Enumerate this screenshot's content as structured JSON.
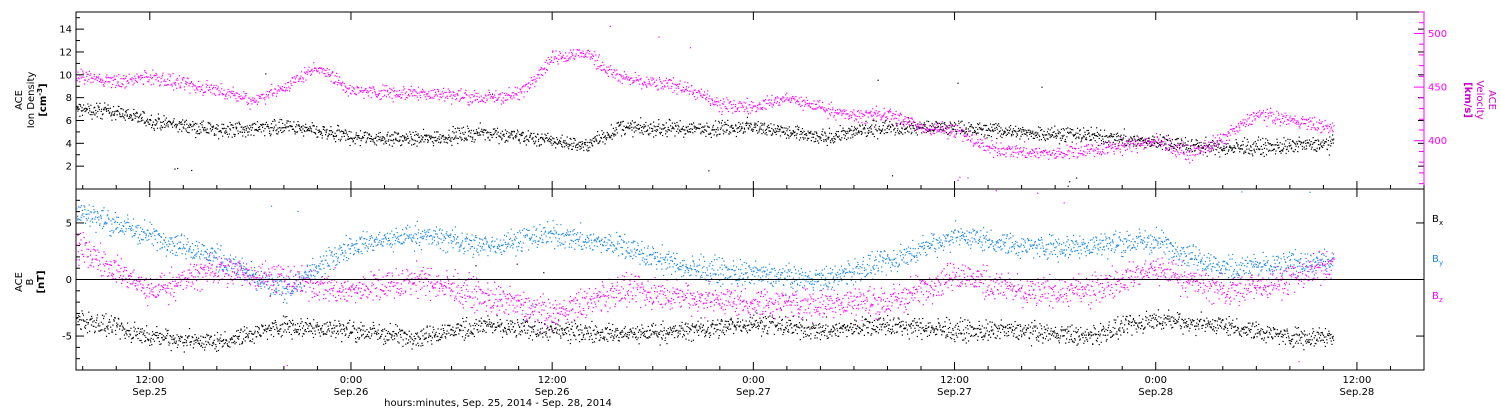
{
  "chart_data": {
    "type": "scatter",
    "xlabel": "hours:minutes, Sep. 25, 2014 - Sep. 28, 2014",
    "x_ticks": [
      {
        "hour": 12,
        "time": "12:00",
        "date": "Sep.25"
      },
      {
        "hour": 24,
        "time": "0:00",
        "date": "Sep.26"
      },
      {
        "hour": 36,
        "time": "12:00",
        "date": "Sep.26"
      },
      {
        "hour": 48,
        "time": "0:00",
        "date": "Sep.27"
      },
      {
        "hour": 60,
        "time": "12:00",
        "date": "Sep.27"
      },
      {
        "hour": 72,
        "time": "0:00",
        "date": "Sep.28"
      },
      {
        "hour": 84,
        "time": "12:00",
        "date": "Sep.28"
      }
    ],
    "xlim": [
      7.6,
      88
    ],
    "data_end_hour": 82.6,
    "panels": [
      {
        "id": "density-velocity",
        "ylabel_lines": [
          "ACE",
          "Ion Density",
          "[cm^-3]"
        ],
        "ylim": [
          0,
          15.5
        ],
        "yticks": [
          2,
          4,
          6,
          8,
          10,
          12,
          14
        ],
        "right_axis": {
          "ylabel_lines": [
            "ACE",
            "Velocity",
            "[km/s]"
          ],
          "ylim": [
            355,
            520
          ],
          "yticks": [
            400,
            450,
            500
          ],
          "color": "#ff00ff"
        },
        "series": [
          {
            "axis": "left",
            "color": "#000000",
            "trend": [
              [
                7.6,
                7.0
              ],
              [
                10,
                6.8
              ],
              [
                12,
                6.0
              ],
              [
                16,
                5.2
              ],
              [
                20,
                5.5
              ],
              [
                24,
                4.6
              ],
              [
                28,
                4.4
              ],
              [
                32,
                5.0
              ],
              [
                36,
                4.3
              ],
              [
                38,
                3.8
              ],
              [
                40,
                5.4
              ],
              [
                44,
                5.3
              ],
              [
                48,
                5.5
              ],
              [
                52,
                4.5
              ],
              [
                56,
                5.5
              ],
              [
                60,
                5.4
              ],
              [
                64,
                5.0
              ],
              [
                68,
                4.7
              ],
              [
                72,
                4.1
              ],
              [
                76,
                3.6
              ],
              [
                80,
                3.8
              ],
              [
                82.6,
                4.0
              ]
            ]
          },
          {
            "axis": "right",
            "color": "#ff00ff",
            "trend": [
              [
                7.6,
                462
              ],
              [
                10,
                455
              ],
              [
                12,
                460
              ],
              [
                14,
                452
              ],
              [
                16,
                448
              ],
              [
                18,
                438
              ],
              [
                20,
                450
              ],
              [
                22,
                470
              ],
              [
                24,
                447
              ],
              [
                28,
                445
              ],
              [
                32,
                440
              ],
              [
                34,
                444
              ],
              [
                36,
                478
              ],
              [
                38,
                482
              ],
              [
                40,
                459
              ],
              [
                44,
                450
              ],
              [
                46,
                433
              ],
              [
                48,
                432
              ],
              [
                50,
                440
              ],
              [
                54,
                423
              ],
              [
                56,
                426
              ],
              [
                58,
                413
              ],
              [
                60,
                410
              ],
              [
                62,
                393
              ],
              [
                66,
                388
              ],
              [
                70,
                395
              ],
              [
                72,
                400
              ],
              [
                74,
                388
              ],
              [
                76,
                402
              ],
              [
                78,
                425
              ],
              [
                80,
                420
              ],
              [
                82.6,
                412
              ]
            ]
          }
        ]
      },
      {
        "id": "magnetic-field",
        "ylabel_lines": [
          "ACE",
          "B",
          "[nT]"
        ],
        "ylim": [
          -8,
          8
        ],
        "yticks": [
          -5,
          0,
          5
        ],
        "zero_line": true,
        "legend": [
          {
            "label": "B",
            "sub": "x",
            "color": "#000000"
          },
          {
            "label": "B",
            "sub": "y",
            "color": "#1a88e6"
          },
          {
            "label": "B",
            "sub": "z",
            "color": "#ff00ff"
          }
        ],
        "series": [
          {
            "color": "#000000",
            "trend": [
              [
                7.6,
                -3.5
              ],
              [
                12,
                -5.0
              ],
              [
                16,
                -5.5
              ],
              [
                20,
                -4.0
              ],
              [
                24,
                -4.5
              ],
              [
                28,
                -5.0
              ],
              [
                32,
                -4.0
              ],
              [
                36,
                -4.5
              ],
              [
                40,
                -4.8
              ],
              [
                44,
                -4.5
              ],
              [
                48,
                -3.8
              ],
              [
                52,
                -4.5
              ],
              [
                56,
                -4.0
              ],
              [
                60,
                -4.5
              ],
              [
                64,
                -4.5
              ],
              [
                68,
                -5.0
              ],
              [
                72,
                -3.5
              ],
              [
                76,
                -4.0
              ],
              [
                80,
                -5.0
              ],
              [
                82.6,
                -5.0
              ]
            ]
          },
          {
            "color": "#1a88e6",
            "trend": [
              [
                7.6,
                6.0
              ],
              [
                12,
                4.0
              ],
              [
                16,
                2.0
              ],
              [
                20,
                -1.0
              ],
              [
                24,
                3.0
              ],
              [
                28,
                4.0
              ],
              [
                32,
                3.0
              ],
              [
                36,
                4.0
              ],
              [
                40,
                3.0
              ],
              [
                44,
                1.0
              ],
              [
                48,
                0.5
              ],
              [
                52,
                0.0
              ],
              [
                56,
                1.5
              ],
              [
                60,
                4.0
              ],
              [
                64,
                3.0
              ],
              [
                68,
                3.0
              ],
              [
                72,
                3.5
              ],
              [
                76,
                1.0
              ],
              [
                80,
                1.5
              ],
              [
                82.6,
                1.5
              ]
            ]
          },
          {
            "color": "#ff00ff",
            "trend": [
              [
                7.6,
                3.0
              ],
              [
                12,
                -1.0
              ],
              [
                16,
                1.0
              ],
              [
                20,
                0.0
              ],
              [
                24,
                -1.0
              ],
              [
                28,
                0.0
              ],
              [
                32,
                -1.5
              ],
              [
                36,
                -3.0
              ],
              [
                40,
                -1.0
              ],
              [
                44,
                -1.5
              ],
              [
                48,
                -2.0
              ],
              [
                52,
                -2.0
              ],
              [
                56,
                -2.0
              ],
              [
                60,
                0.5
              ],
              [
                64,
                -1.0
              ],
              [
                68,
                -1.0
              ],
              [
                72,
                1.0
              ],
              [
                76,
                -1.0
              ],
              [
                80,
                0.0
              ],
              [
                82.6,
                1.5
              ]
            ]
          }
        ]
      }
    ]
  }
}
